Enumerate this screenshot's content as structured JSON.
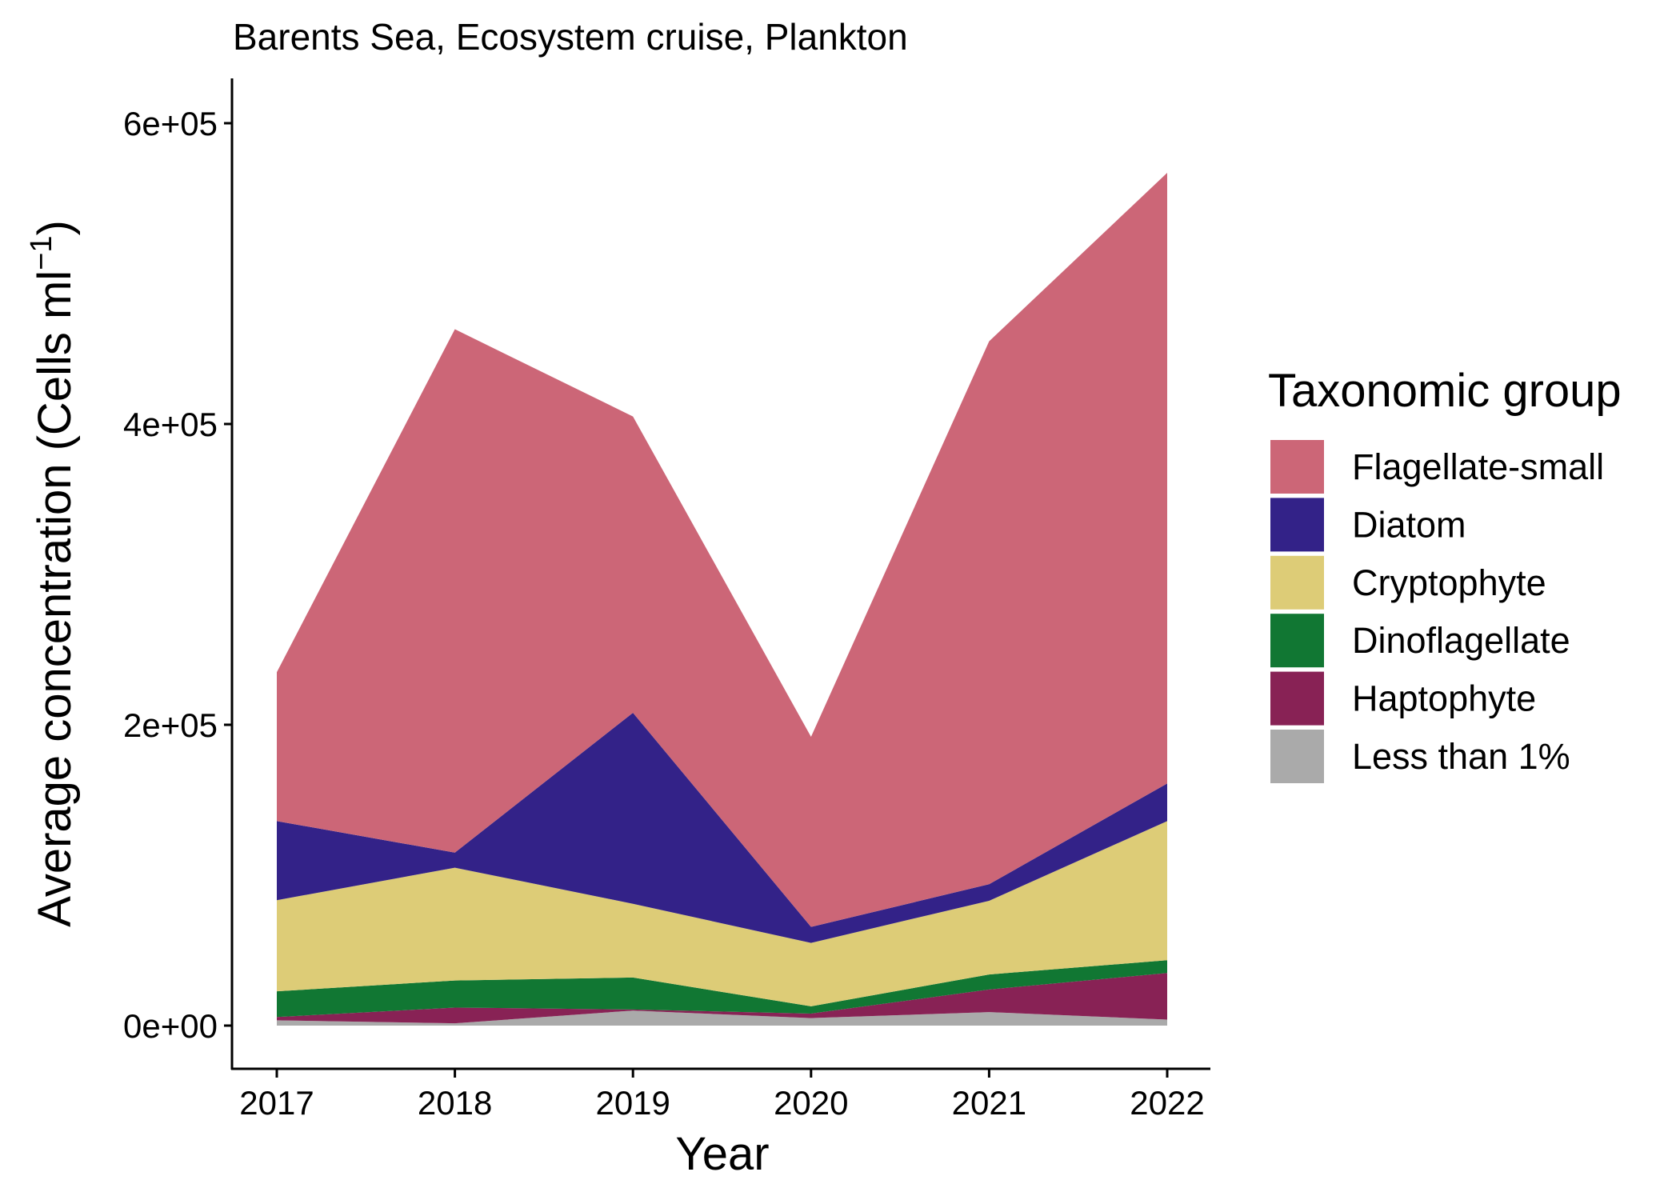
{
  "chart_data": {
    "type": "area",
    "stacked": true,
    "title": "Barents Sea, Ecosystem cruise, Plankton",
    "xlabel": "Year",
    "ylabel": {
      "main": "Average concentration (Cells ml",
      "superscript": "−1",
      "close": ")"
    },
    "x": [
      2017,
      2018,
      2019,
      2020,
      2021,
      2022
    ],
    "x_tick_labels": [
      "2017",
      "2018",
      "2019",
      "2020",
      "2021",
      "2022"
    ],
    "y_ticks": [
      0,
      200000,
      400000,
      600000
    ],
    "y_tick_labels": [
      "0e+00",
      "2e+05",
      "4e+05",
      "6e+05"
    ],
    "ylim": [
      -28000,
      630000
    ],
    "grid": false,
    "legend": {
      "title": "Taxonomic group",
      "position": "right"
    },
    "series": [
      {
        "name": "Less than 1%",
        "color": "#AAAAAA",
        "values": [
          3500,
          1500,
          10000,
          5000,
          9000,
          4000
        ]
      },
      {
        "name": "Haptophyte",
        "color": "#882255",
        "values": [
          2200,
          10500,
          700,
          3000,
          15000,
          31000
        ]
      },
      {
        "name": "Dinoflagellate",
        "color": "#117733",
        "values": [
          17100,
          18000,
          21300,
          4800,
          10000,
          8500
        ]
      },
      {
        "name": "Cryptophyte",
        "color": "#DDCC77",
        "values": [
          60600,
          75000,
          49000,
          42200,
          49000,
          92500
        ]
      },
      {
        "name": "Diatom",
        "color": "#332288",
        "values": [
          52600,
          10000,
          127000,
          10600,
          11000,
          25000
        ]
      },
      {
        "name": "Flagellate-small",
        "color": "#CC6677",
        "values": [
          99000,
          348000,
          197000,
          126400,
          361000,
          406000
        ]
      }
    ],
    "legend_order": [
      "Flagellate-small",
      "Diatom",
      "Cryptophyte",
      "Dinoflagellate",
      "Haptophyte",
      "Less than 1%"
    ]
  }
}
